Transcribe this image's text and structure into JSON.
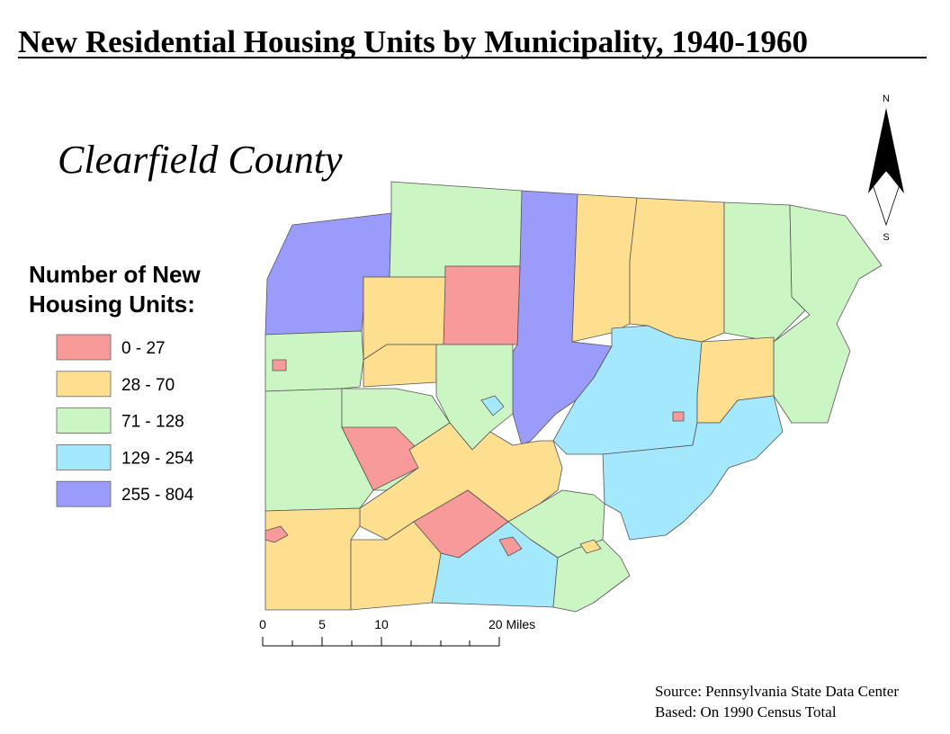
{
  "title": "New Residential Housing Units by Municipality, 1940-1960",
  "subtitle": "Clearfield County",
  "legend": {
    "title_lines": [
      "Number of New",
      "Housing Units:"
    ],
    "classes": [
      {
        "label": "0 - 27",
        "color": "#f99a9a"
      },
      {
        "label": "28 - 70",
        "color": "#fedf90"
      },
      {
        "label": "71 - 128",
        "color": "#cbf5c2"
      },
      {
        "label": "129 - 254",
        "color": "#a4e8fd"
      },
      {
        "label": "255 - 804",
        "color": "#9b9bfb"
      }
    ]
  },
  "scale_bar": {
    "labels": [
      "0",
      "5",
      "10",
      "20 Miles"
    ]
  },
  "north_arrow": {
    "north": "N",
    "south": "S"
  },
  "source": [
    "Source: Pennsylvania State Data Center",
    "Based: On 1990 Census Total"
  ]
}
